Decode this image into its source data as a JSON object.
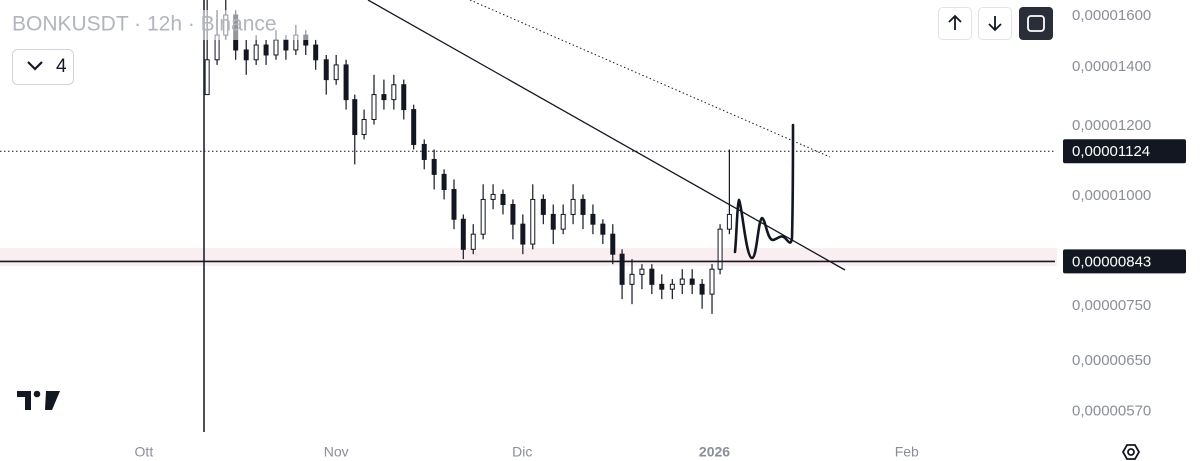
{
  "chart_data": {
    "type": "candlestick",
    "title": "BONKUSDT · 12h · Binance",
    "interval_button": "4",
    "log_scale": true,
    "color": "#131722",
    "xlim": [
      -23.2,
      146.9
    ],
    "xticks": [
      {
        "value": 0,
        "label": "Ott"
      },
      {
        "value": 31,
        "label": "Nov"
      },
      {
        "value": 61,
        "label": "Dic"
      },
      {
        "value": 92,
        "label": "2026"
      },
      {
        "value": 123,
        "label": "Feb"
      }
    ],
    "ylim": [
      5.4e-06,
      1.668e-05
    ],
    "yticks": [
      {
        "value": 1.6e-05,
        "label": "0,00001600"
      },
      {
        "value": 1.4e-05,
        "label": "0,00001400"
      },
      {
        "value": 1.2e-05,
        "label": "0,00001200"
      },
      {
        "value": 1e-05,
        "label": "0,00001000"
      },
      {
        "value": 7.5e-06,
        "label": "0,00000750"
      },
      {
        "value": 6.5e-06,
        "label": "0,00000650"
      },
      {
        "value": 5.7e-06,
        "label": "0,00000570"
      }
    ],
    "price_lines": [
      {
        "value": 1.124e-05,
        "label": "0,00001124"
      },
      {
        "value": 8.43e-06,
        "label": "0,00000843"
      }
    ],
    "x": [
      10.2,
      11.8,
      13.2,
      14.8,
      16.5,
      18.1,
      19.7,
      21.3,
      22.9,
      24.5,
      26.1,
      27.7,
      29.4,
      31.0,
      32.6,
      34.0,
      35.5,
      37.1,
      38.7,
      40.3,
      41.9,
      43.5,
      45.2,
      46.8,
      48.4,
      50.0,
      51.5,
      53.1,
      54.7,
      56.3,
      57.9,
      59.5,
      61.1,
      62.7,
      64.4,
      66.0,
      67.6,
      69.2,
      70.8,
      72.4,
      74.0,
      75.6,
      77.1,
      78.7,
      80.3,
      81.9,
      83.5,
      85.2,
      86.8,
      88.4,
      90.0,
      91.6,
      92.9,
      94.4
    ],
    "open": [
      1.303e-05,
      1.427e-05,
      1.522e-05,
      1.604e-05,
      1.464e-05,
      1.427e-05,
      1.483e-05,
      1.445e-05,
      1.503e-05,
      1.464e-05,
      1.522e-05,
      1.483e-05,
      1.427e-05,
      1.355e-05,
      1.408e-05,
      1.286e-05,
      1.174e-05,
      1.221e-05,
      1.303e-05,
      1.286e-05,
      1.337e-05,
      1.253e-05,
      1.144e-05,
      1.1e-05,
      1.058e-05,
      1.017e-05,
      9.41e-06,
      8.7e-06,
      9.05e-06,
      9.91e-06,
      1.004e-05,
      9.78e-06,
      9.29e-06,
      8.82e-06,
      9.91e-06,
      9.53e-06,
      9.17e-06,
      9.53e-06,
      9.91e-06,
      9.53e-06,
      9.29e-06,
      9.05e-06,
      8.59e-06,
      7.94e-06,
      8.15e-06,
      8.26e-06,
      7.94e-06,
      7.84e-06,
      7.94e-06,
      8.05e-06,
      7.94e-06,
      7.74e-06,
      8.26e-06,
      9.17e-06
    ],
    "high": [
      1.668e-05,
      1.625e-05,
      1.668e-05,
      1.625e-05,
      1.503e-05,
      1.522e-05,
      1.503e-05,
      1.542e-05,
      1.522e-05,
      1.563e-05,
      1.542e-05,
      1.503e-05,
      1.445e-05,
      1.445e-05,
      1.427e-05,
      1.303e-05,
      1.253e-05,
      1.372e-05,
      1.355e-05,
      1.372e-05,
      1.355e-05,
      1.269e-05,
      1.159e-05,
      1.129e-05,
      1.072e-05,
      1.044e-05,
      9.53e-06,
      9.29e-06,
      1.031e-05,
      1.031e-05,
      1.017e-05,
      9.91e-06,
      9.53e-06,
      1.031e-05,
      1.004e-05,
      9.78e-06,
      9.78e-06,
      1.031e-05,
      1.004e-05,
      9.78e-06,
      9.41e-06,
      9.29e-06,
      8.7e-06,
      8.48e-06,
      8.37e-06,
      8.37e-06,
      8.15e-06,
      8.05e-06,
      8.26e-06,
      8.26e-06,
      8.05e-06,
      8.37e-06,
      9.29e-06,
      1.129e-05
    ],
    "low": [
      1.303e-05,
      1.408e-05,
      1.503e-05,
      1.427e-05,
      1.372e-05,
      1.408e-05,
      1.408e-05,
      1.427e-05,
      1.427e-05,
      1.445e-05,
      1.445e-05,
      1.39e-05,
      1.303e-05,
      1.337e-05,
      1.253e-05,
      1.086e-05,
      1.159e-05,
      1.205e-05,
      1.253e-05,
      1.253e-05,
      1.221e-05,
      1.129e-05,
      1.072e-05,
      1.017e-05,
      9.91e-06,
      9.17e-06,
      8.48e-06,
      8.59e-06,
      8.93e-06,
      9.66e-06,
      9.53e-06,
      8.93e-06,
      8.59e-06,
      8.7e-06,
      9.29e-06,
      8.82e-06,
      9.05e-06,
      9.29e-06,
      9.17e-06,
      9.05e-06,
      8.82e-06,
      8.37e-06,
      7.64e-06,
      7.54e-06,
      7.84e-06,
      7.74e-06,
      7.64e-06,
      7.64e-06,
      7.74e-06,
      7.74e-06,
      7.45e-06,
      7.35e-06,
      8.15e-06,
      9.05e-06
    ],
    "close": [
      1.427e-05,
      1.522e-05,
      1.604e-05,
      1.464e-05,
      1.427e-05,
      1.483e-05,
      1.445e-05,
      1.503e-05,
      1.464e-05,
      1.522e-05,
      1.483e-05,
      1.427e-05,
      1.355e-05,
      1.408e-05,
      1.286e-05,
      1.174e-05,
      1.221e-05,
      1.303e-05,
      1.286e-05,
      1.337e-05,
      1.253e-05,
      1.144e-05,
      1.1e-05,
      1.058e-05,
      1.017e-05,
      9.41e-06,
      8.7e-06,
      9.05e-06,
      9.91e-06,
      1.004e-05,
      9.78e-06,
      9.29e-06,
      8.82e-06,
      9.91e-06,
      9.53e-06,
      9.17e-06,
      9.53e-06,
      9.91e-06,
      9.53e-06,
      9.29e-06,
      9.05e-06,
      8.59e-06,
      7.94e-06,
      8.15e-06,
      8.26e-06,
      7.94e-06,
      7.84e-06,
      7.94e-06,
      8.05e-06,
      7.94e-06,
      7.74e-06,
      8.26e-06,
      9.17e-06,
      9.53e-06
    ]
  }
}
